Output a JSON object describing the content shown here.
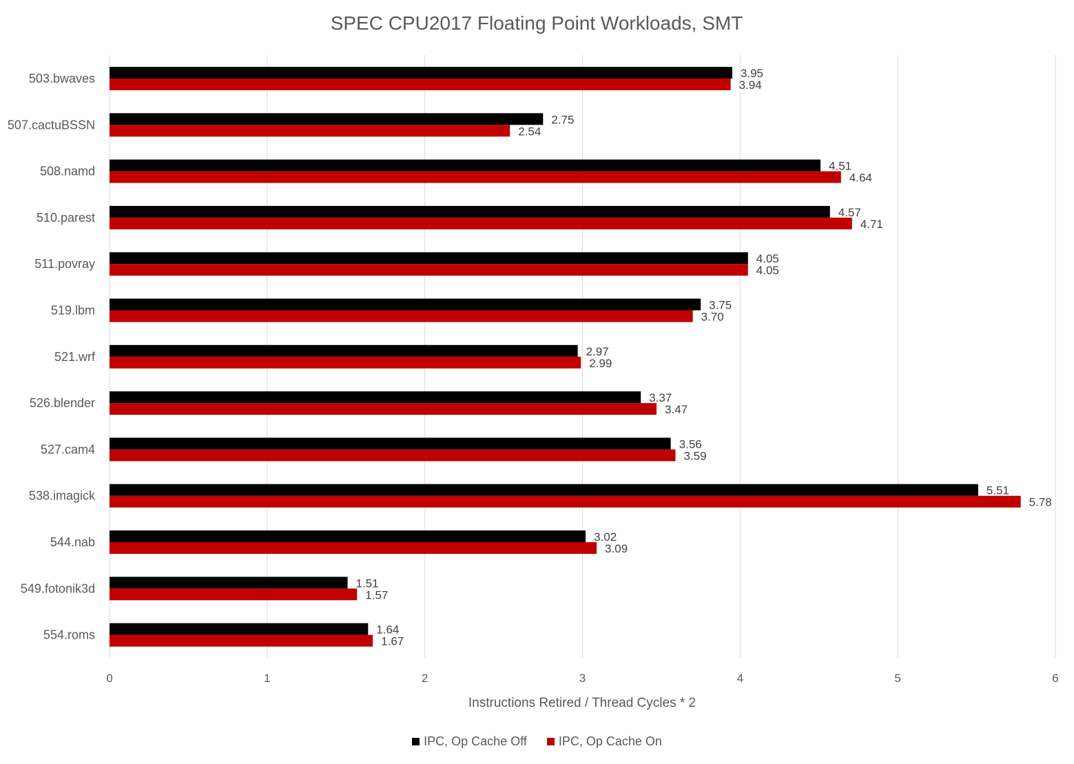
{
  "chart_data": {
    "type": "bar",
    "orientation": "horizontal",
    "title": "SPEC CPU2017 Floating Point Workloads, SMT",
    "xlabel": "Instructions Retired / Thread Cycles * 2",
    "ylabel": "",
    "xlim": [
      0,
      6
    ],
    "xticks": [
      0,
      1,
      2,
      3,
      4,
      5,
      6
    ],
    "grid": true,
    "legend_position": "bottom",
    "categories": [
      "503.bwaves",
      "507.cactuBSSN",
      "508.namd",
      "510.parest",
      "511.povray",
      "519.lbm",
      "521.wrf",
      "526.blender",
      "527.cam4",
      "538.imagick",
      "544.nab",
      "549.fotonik3d",
      "554.roms"
    ],
    "series": [
      {
        "name": "IPC, Op Cache Off",
        "color": "#000000",
        "values": [
          3.95,
          2.75,
          4.51,
          4.57,
          4.05,
          3.75,
          2.97,
          3.37,
          3.56,
          5.51,
          3.02,
          1.51,
          1.64
        ],
        "labels": [
          "3.95",
          "2.75",
          "4.51",
          "4.57",
          "4.05",
          "3.75",
          "2.97",
          "3.37",
          "3.56",
          "5.51",
          "3.02",
          "1.51",
          "1.64"
        ]
      },
      {
        "name": "IPC, Op Cache On",
        "color": "#c00000",
        "values": [
          3.94,
          2.54,
          4.64,
          4.71,
          4.05,
          3.7,
          2.99,
          3.47,
          3.59,
          5.78,
          3.09,
          1.57,
          1.67
        ],
        "labels": [
          "3.94",
          "2.54",
          "4.64",
          "4.71",
          "4.05",
          "3.70",
          "2.99",
          "3.47",
          "3.59",
          "5.78",
          "3.09",
          "1.57",
          "1.67"
        ]
      }
    ]
  }
}
